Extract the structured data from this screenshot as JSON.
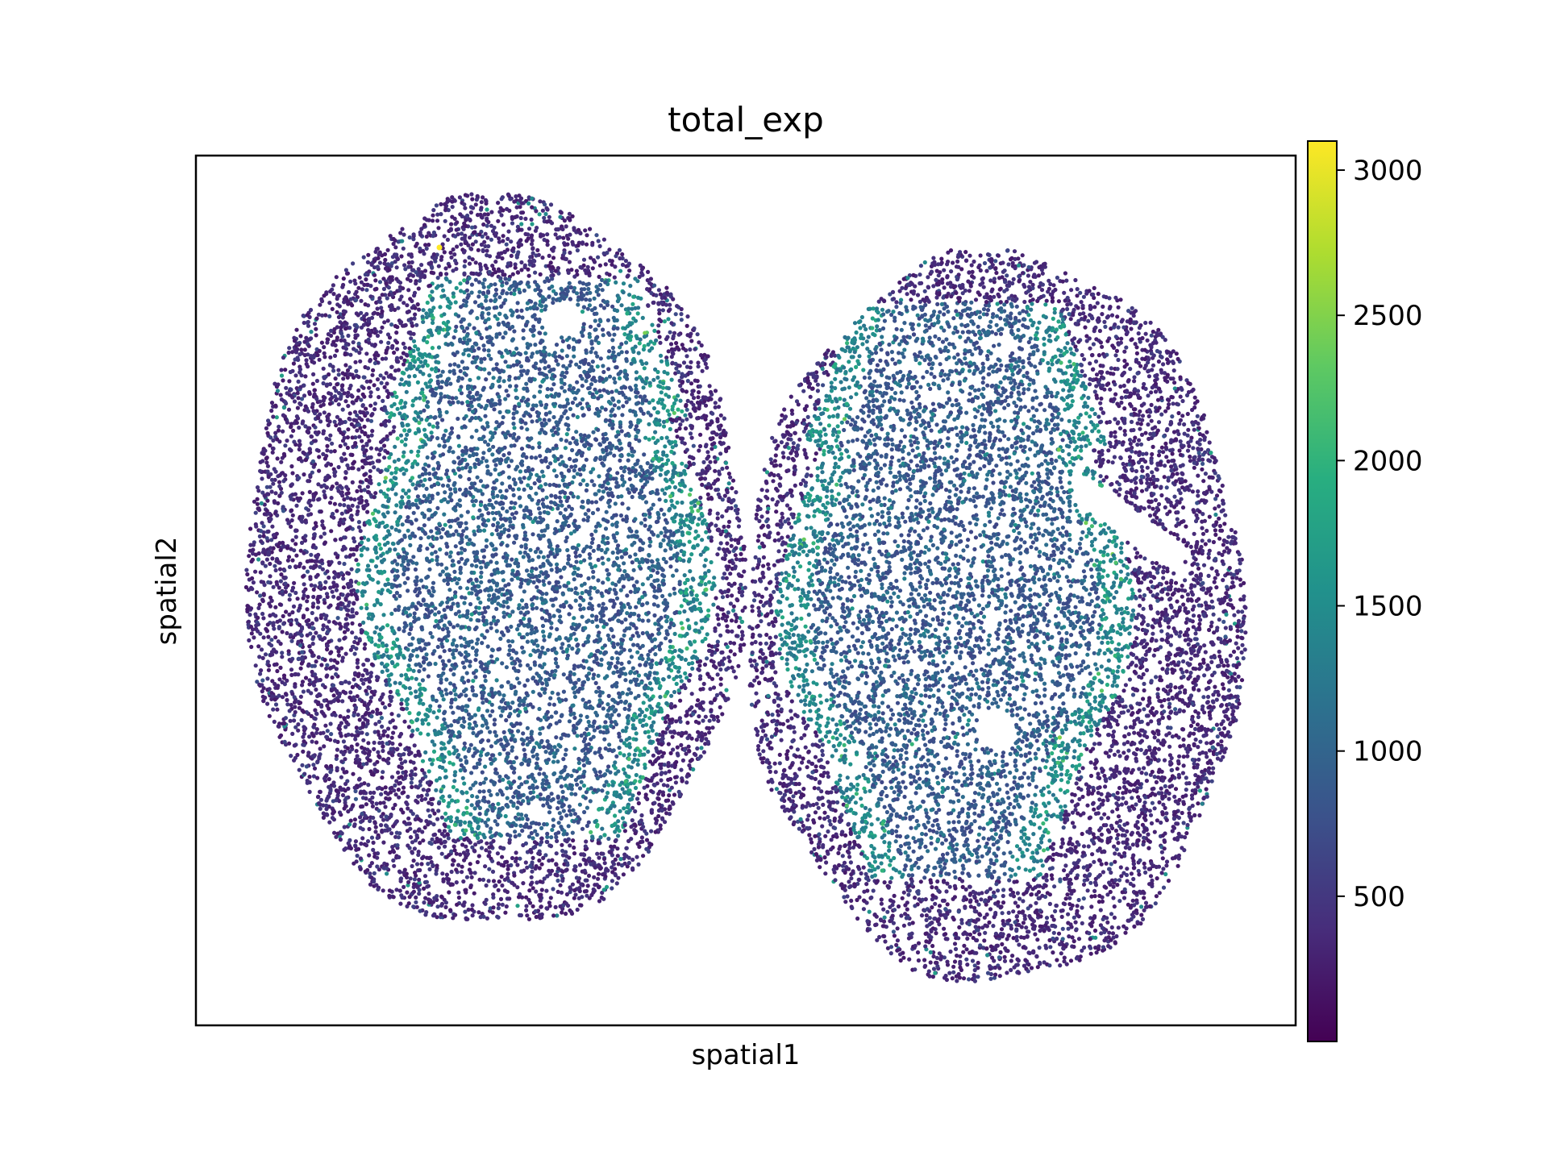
{
  "chart_data": {
    "type": "scatter",
    "title": "total_exp",
    "xlabel": "spatial1",
    "ylabel": "spatial2",
    "colormap": "viridis",
    "colorbar": {
      "range": [
        0,
        3100
      ],
      "ticks": [
        500,
        1000,
        1500,
        2000,
        2500,
        3000
      ],
      "tick_labels": [
        "500",
        "1000",
        "1500",
        "2000",
        "2500",
        "3000"
      ]
    },
    "axis_ticks_visible": false,
    "grid": false,
    "series": [
      {
        "point_count_estimate": 20000,
        "value_range": [
          0,
          3100
        ],
        "typical_value_range": [
          200,
          1500
        ],
        "regions": [
          {
            "value_level": "low (~300)",
            "location": "outer cortex of both lobes"
          },
          {
            "value_level": "medium (~900-1300)",
            "location": "inner medulla-like region of both lobes"
          },
          {
            "value_level": "high (~1500-2000)",
            "location": "boundary rim around inner regions"
          },
          {
            "value_level": "max (~3100)",
            "location": "single spot near top-left edge of left lobe"
          }
        ]
      }
    ]
  },
  "colors": {
    "viridis_low": "#440154",
    "viridis_mid": "#21918c",
    "viridis_high": "#fde725",
    "axis": "#000000",
    "background": "#ffffff"
  }
}
